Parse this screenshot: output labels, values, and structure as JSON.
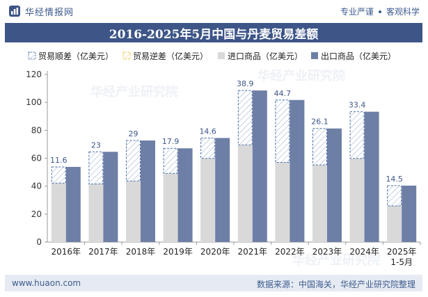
{
  "header": {
    "brand_name": "华经情报网",
    "tagline_left": "专业严谨",
    "tagline_right": "客观科学"
  },
  "footer": {
    "website": "www.huaon.com",
    "source": "数据来源：中国海关，华经产业研究院整理"
  },
  "watermark": {
    "text": "华经产业研究院"
  },
  "colors": {
    "title_bg": "#3d5587",
    "export": "#6e7fa6",
    "import": "#d9d9d9",
    "surplus_border": "#4a70a8",
    "deficit_border": "#f0c040"
  },
  "chart_data": {
    "type": "bar",
    "title": "2016-2025年5月中国与丹麦贸易差额",
    "xlabel": "",
    "ylabel": "",
    "ylim": [
      0,
      120
    ],
    "yticks": [
      0,
      20,
      40,
      60,
      80,
      100,
      120
    ],
    "categories": [
      "2016年",
      "2017年",
      "2018年",
      "2019年",
      "2020年",
      "2021年",
      "2022年",
      "2023年",
      "2024年",
      "2025年\n1-5月"
    ],
    "legend": [
      "贸易顺差（亿美元）",
      "贸易逆差（亿美元）",
      "进口商品（亿美元）",
      "出口商品（亿美元）"
    ],
    "series": [
      {
        "name": "进口商品（亿美元）",
        "values": [
          42.2,
          41.6,
          43.7,
          49.2,
          59.9,
          69.6,
          57.0,
          55.2,
          59.9,
          25.9
        ]
      },
      {
        "name": "出口商品（亿美元）",
        "values": [
          53.8,
          64.6,
          72.7,
          67.1,
          74.5,
          108.5,
          101.7,
          81.3,
          93.3,
          40.4
        ]
      },
      {
        "name": "贸易顺差（亿美元）",
        "values": [
          11.6,
          23.0,
          29.0,
          17.9,
          14.6,
          38.9,
          44.7,
          26.1,
          33.4,
          14.5
        ]
      },
      {
        "name": "贸易逆差（亿美元）",
        "values": [
          0,
          0,
          0,
          0,
          0,
          0,
          0,
          0,
          0,
          0
        ]
      }
    ],
    "data_labels": [
      "11.6",
      "23",
      "29",
      "17.9",
      "14.6",
      "38.9",
      "44.7",
      "26.1",
      "33.4",
      "14.5"
    ]
  }
}
